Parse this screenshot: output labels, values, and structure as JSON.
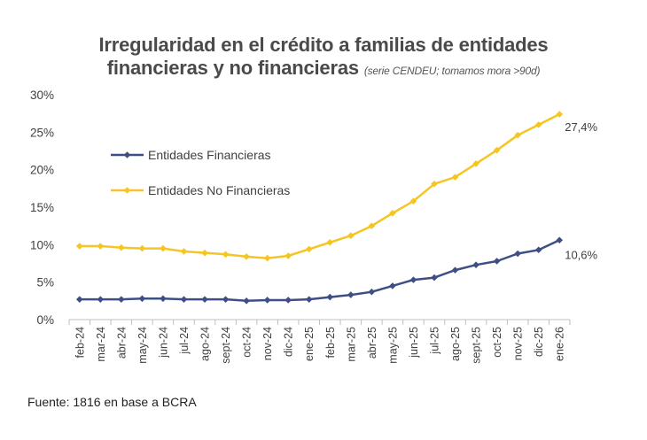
{
  "chart_data": {
    "type": "line",
    "title": "Irregularidad en el crédito a familias de entidades",
    "title_line2": "financieras y no financieras",
    "subtitle": "(serie CENDEU; tomamos mora >90d)",
    "source": "Fuente: 1816 en base a BCRA",
    "categories": [
      "feb-24",
      "mar-24",
      "abr-24",
      "may-24",
      "jun-24",
      "jul-24",
      "ago-24",
      "sept-24",
      "oct-24",
      "nov-24",
      "dic-24",
      "ene-25",
      "feb-25",
      "mar-25",
      "abr-25",
      "may-25",
      "jun-25",
      "jul-25",
      "ago-25",
      "sept-25",
      "oct-25",
      "nov-25",
      "dic-25",
      "ene-26"
    ],
    "ylim": [
      0,
      30
    ],
    "yticks": [
      0,
      5,
      10,
      15,
      20,
      25,
      30
    ],
    "ytick_labels": [
      "0%",
      "5%",
      "10%",
      "15%",
      "20%",
      "25%",
      "30%"
    ],
    "grid": false,
    "legend_position": "upper-left",
    "series": [
      {
        "name": "Entidades Financieras",
        "color": "#3f4f86",
        "values": [
          2.7,
          2.7,
          2.7,
          2.8,
          2.8,
          2.7,
          2.7,
          2.7,
          2.5,
          2.6,
          2.6,
          2.7,
          3.0,
          3.3,
          3.7,
          4.5,
          5.3,
          5.6,
          6.6,
          7.3,
          7.8,
          8.8,
          9.3,
          10.6
        ],
        "end_label": "10,6%"
      },
      {
        "name": "Entidades No Financieras",
        "color": "#f5c623",
        "values": [
          9.8,
          9.8,
          9.6,
          9.5,
          9.5,
          9.1,
          8.9,
          8.7,
          8.4,
          8.2,
          8.5,
          9.4,
          10.3,
          11.2,
          12.5,
          14.2,
          15.8,
          18.1,
          19.0,
          20.8,
          22.6,
          24.6,
          26.0,
          27.4
        ],
        "end_label": "27,4%"
      }
    ]
  }
}
